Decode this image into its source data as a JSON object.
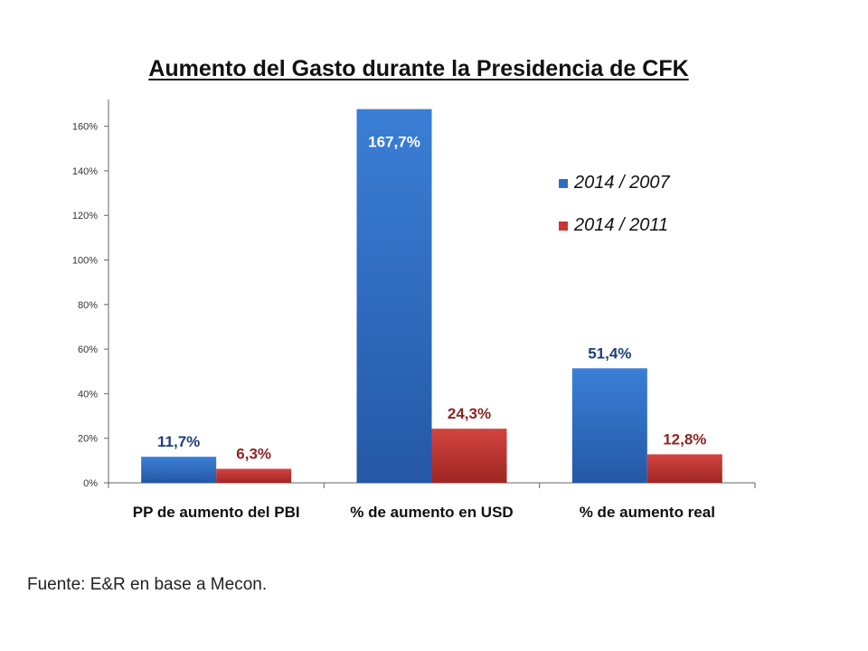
{
  "chart_data": {
    "type": "bar",
    "title": "Aumento del Gasto durante la Presidencia de CFK",
    "categories": [
      "PP de aumento del PBI",
      "% de aumento en USD",
      "% de aumento real"
    ],
    "series": [
      {
        "name": "2014 / 2007",
        "values": [
          11.7,
          167.7,
          51.4
        ],
        "labels": [
          "11,7%",
          "167,7%",
          "51,4%"
        ],
        "color": "#2e6fc6",
        "label_color": "#1f3f7a"
      },
      {
        "name": "2014 / 2011",
        "values": [
          6.3,
          24.3,
          12.8
        ],
        "labels": [
          "6,3%",
          "24,3%",
          "12,8%"
        ],
        "color": "#c83533",
        "label_color": "#8b2523"
      }
    ],
    "ylim": [
      0,
      170
    ],
    "yticks": [
      0,
      20,
      40,
      60,
      80,
      100,
      120,
      140,
      160
    ],
    "ytick_labels": [
      "0%",
      "20%",
      "40%",
      "60%",
      "80%",
      "100%",
      "120%",
      "140%",
      "160%"
    ],
    "xlabel": "",
    "ylabel": "",
    "grid": false,
    "legend_position": "top-right"
  },
  "source": "Fuente: E&R en base a Mecon."
}
